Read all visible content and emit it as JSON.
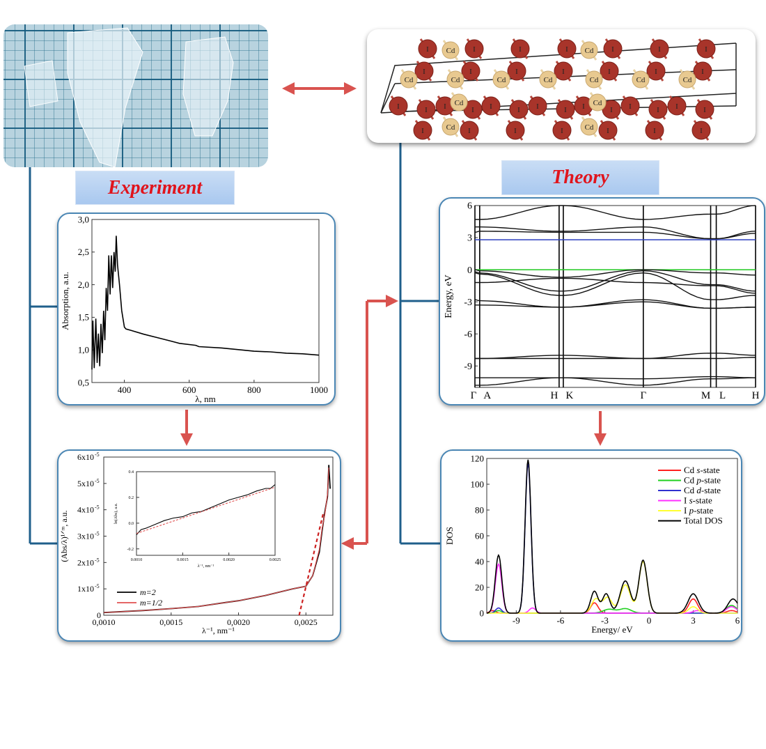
{
  "labels": {
    "experiment": "Experiment",
    "theory": "Theory"
  },
  "structure": {
    "atom_labels": {
      "cd": "Cd",
      "i": "I"
    }
  },
  "colors": {
    "connector": "#1f5f8b",
    "arrow": "#d9534f",
    "label_text": "#e0141c",
    "iodine": "#a8342a",
    "cadmium": "#e8c990",
    "panel_border": "#4a86b4"
  },
  "chart_data": [
    {
      "id": "absorption",
      "type": "line",
      "xlabel": "λ, nm",
      "ylabel": "Absorption, a.u.",
      "xlim": [
        300,
        1000
      ],
      "ylim": [
        0.5,
        3.0
      ],
      "x_ticks": [
        400,
        600,
        800,
        1000
      ],
      "x_tick_labels": [
        "400",
        "600",
        "800",
        "1000"
      ],
      "y_ticks": [
        0.5,
        1.0,
        1.5,
        2.0,
        2.5,
        3.0
      ],
      "y_tick_labels": [
        "0,5",
        "1,0",
        "1,5",
        "2,0",
        "2,5",
        "3,0"
      ],
      "series": [
        {
          "color": "#000000",
          "points": [
            [
              300,
              0.7
            ],
            [
              303,
              1.45
            ],
            [
              307,
              0.72
            ],
            [
              312,
              1.48
            ],
            [
              316,
              0.8
            ],
            [
              320,
              1.25
            ],
            [
              324,
              0.75
            ],
            [
              328,
              1.4
            ],
            [
              332,
              0.95
            ],
            [
              336,
              1.6
            ],
            [
              340,
              1.15
            ],
            [
              344,
              1.95
            ],
            [
              348,
              1.6
            ],
            [
              352,
              2.45
            ],
            [
              356,
              1.85
            ],
            [
              360,
              2.45
            ],
            [
              364,
              1.95
            ],
            [
              368,
              2.5
            ],
            [
              372,
              2.2
            ],
            [
              375,
              2.75
            ],
            [
              379,
              2.3
            ],
            [
              385,
              2.0
            ],
            [
              392,
              1.6
            ],
            [
              400,
              1.35
            ],
            [
              405,
              1.32
            ],
            [
              420,
              1.3
            ],
            [
              460,
              1.24
            ],
            [
              500,
              1.19
            ],
            [
              540,
              1.14
            ],
            [
              570,
              1.1
            ],
            [
              620,
              1.07
            ],
            [
              630,
              1.05
            ],
            [
              700,
              1.03
            ],
            [
              760,
              1.0
            ],
            [
              800,
              0.98
            ],
            [
              850,
              0.97
            ],
            [
              900,
              0.95
            ],
            [
              950,
              0.94
            ],
            [
              1000,
              0.92
            ]
          ]
        }
      ]
    },
    {
      "id": "tauc",
      "type": "line",
      "xlabel": "λ⁻¹, nm⁻¹",
      "ylabel": "(Abs/λ)¹ᐟᵐ, a.u.",
      "xlim": [
        0.001,
        0.0027
      ],
      "ylim": [
        0,
        6e-05
      ],
      "x_ticks": [
        0.001,
        0.0015,
        0.002,
        0.0025
      ],
      "x_tick_labels": [
        "0,0010",
        "0,0015",
        "0,0020",
        "0,0025"
      ],
      "y_ticks": [
        0,
        1e-05,
        2e-05,
        3e-05,
        4e-05,
        5e-05,
        6e-05
      ],
      "y_tick_labels": [
        "0",
        "1x10",
        "2x10",
        "3x10",
        "4x10",
        "5x10",
        "6x10"
      ],
      "y_tick_exponent": "-5",
      "legend": [
        "m=2",
        "m=1/2"
      ],
      "legend_placement": "bottom-left",
      "series": [
        {
          "name": "m=2",
          "color": "#000000",
          "points": [
            [
              0.001,
              1e-06
            ],
            [
              0.0013,
              1.8e-06
            ],
            [
              0.0015,
              2.5e-06
            ],
            [
              0.0017,
              3.3e-06
            ],
            [
              0.0019,
              4.8e-06
            ],
            [
              0.002,
              5.5e-06
            ],
            [
              0.0022,
              7.5e-06
            ],
            [
              0.0024,
              1e-05
            ],
            [
              0.0025,
              1.1e-05
            ],
            [
              0.00255,
              1.5e-05
            ],
            [
              0.0026,
              2.4e-05
            ],
            [
              0.00262,
              3.2e-05
            ],
            [
              0.00264,
              3.9e-05
            ],
            [
              0.00266,
              4.5e-05
            ],
            [
              0.00267,
              5.7e-05
            ],
            [
              0.00268,
              4.8e-05
            ]
          ]
        },
        {
          "name": "m=1/2",
          "color": "#e05050",
          "points": [
            [
              0.001,
              1e-06
            ],
            [
              0.0013,
              1.8e-06
            ],
            [
              0.0015,
              2.5e-06
            ],
            [
              0.0017,
              3.3e-06
            ],
            [
              0.0019,
              4.8e-06
            ],
            [
              0.002,
              5.5e-06
            ],
            [
              0.0022,
              7.5e-06
            ],
            [
              0.0024,
              1e-05
            ],
            [
              0.0025,
              1.1e-05
            ],
            [
              0.00255,
              1.5e-05
            ],
            [
              0.0026,
              2.5e-05
            ],
            [
              0.00262,
              3.3e-05
            ],
            [
              0.00264,
              3.8e-05
            ],
            [
              0.00266,
              4.6e-05
            ],
            [
              0.00267,
              5.6e-05
            ]
          ]
        }
      ],
      "fit_line": {
        "color": "#cc1f1f",
        "style": "dashed",
        "points": [
          [
            0.00245,
            0
          ],
          [
            0.00263,
            3.9e-05
          ]
        ]
      },
      "inset": {
        "xlabel": "λ⁻¹, nm⁻¹",
        "ylabel": "ln(Abs), a.u.",
        "xlim": [
          0.001,
          0.0025
        ],
        "ylim": [
          -0.25,
          0.4
        ],
        "x_ticks": [
          0.001,
          0.0015,
          0.002,
          0.0025
        ],
        "x_tick_labels": [
          "0.0010",
          "0.0015",
          "0.0020",
          "0.0025"
        ],
        "y_ticks": [
          -0.2,
          0.0,
          0.2,
          0.4
        ],
        "y_tick_labels": [
          "-0.2",
          "0.0",
          "0.2",
          "0.4"
        ],
        "series": [
          {
            "color": "#000000",
            "points": [
              [
                0.001,
                -0.09
              ],
              [
                0.00105,
                -0.05
              ],
              [
                0.0011,
                -0.04
              ],
              [
                0.0012,
                -0.01
              ],
              [
                0.0013,
                0.02
              ],
              [
                0.0014,
                0.04
              ],
              [
                0.0015,
                0.05
              ],
              [
                0.0016,
                0.08
              ],
              [
                0.0017,
                0.09
              ],
              [
                0.0018,
                0.12
              ],
              [
                0.0019,
                0.15
              ],
              [
                0.002,
                0.18
              ],
              [
                0.0021,
                0.2
              ],
              [
                0.0022,
                0.22
              ],
              [
                0.0023,
                0.25
              ],
              [
                0.0024,
                0.27
              ],
              [
                0.00245,
                0.27
              ],
              [
                0.0025,
                0.3
              ]
            ]
          },
          {
            "color": "#e05050",
            "style": "dashed",
            "points": [
              [
                0.001,
                -0.08
              ],
              [
                0.0025,
                0.28
              ]
            ]
          }
        ]
      }
    },
    {
      "id": "band-structure",
      "type": "line",
      "ylabel": "Energy, eV",
      "ylim": [
        -11,
        6
      ],
      "y_ticks": [
        6,
        3,
        0,
        -3,
        -6,
        -9
      ],
      "y_tick_labels": [
        "6",
        "3",
        "0",
        "-3",
        "-6",
        "-9"
      ],
      "k_labels": [
        "Γ",
        "A",
        "H",
        "K",
        "Γ",
        "M",
        "L",
        "H"
      ],
      "reference_lines": [
        {
          "energy": 2.8,
          "color": "#2b3fbf"
        },
        {
          "energy": 0,
          "color": "#1fc81f"
        }
      ],
      "bands": [
        [
          4.7,
          4.7,
          6.0,
          6.0,
          4.7,
          5.2,
          5.2,
          6.0
        ],
        [
          4.0,
          4.0,
          3.6,
          3.6,
          4.0,
          2.9,
          2.9,
          3.6
        ],
        [
          3.5,
          3.6,
          3.5,
          3.5,
          3.5,
          2.9,
          2.9,
          3.4
        ],
        [
          0.0,
          -0.1,
          -0.7,
          -0.7,
          0.0,
          -0.3,
          -0.3,
          -0.5
        ],
        [
          -0.2,
          -0.3,
          -2.0,
          -2.0,
          -0.1,
          -1.4,
          -1.4,
          -2.0
        ],
        [
          -0.3,
          -0.4,
          -2.4,
          -2.4,
          -0.3,
          -2.8,
          -2.8,
          -2.4
        ],
        [
          -1.2,
          -1.2,
          -0.8,
          -0.8,
          -1.2,
          -1.5,
          -1.5,
          -2.2
        ],
        [
          -2.8,
          -2.9,
          -3.5,
          -3.5,
          -2.8,
          -3.6,
          -3.6,
          -3.5
        ],
        [
          -3.3,
          -3.3,
          -3.5,
          -3.5,
          -3.0,
          -3.6,
          -3.6,
          -3.5
        ],
        [
          -8.3,
          -8.3,
          -8.0,
          -8.0,
          -8.3,
          -7.8,
          -7.8,
          -8.0
        ],
        [
          -8.3,
          -8.3,
          -8.3,
          -8.3,
          -8.3,
          -8.3,
          -8.3,
          -8.2
        ],
        [
          -10.1,
          -10.1,
          -10.1,
          -10.1,
          -10.2,
          -10.0,
          -10.0,
          -10.1
        ],
        [
          -10.8,
          -10.8,
          -10.1,
          -10.1,
          -10.8,
          -10.2,
          -10.2,
          -10.1
        ]
      ]
    },
    {
      "id": "dos",
      "type": "line",
      "xlabel": "Energy/ eV",
      "ylabel": "DOS",
      "xlim": [
        -11,
        6
      ],
      "ylim": [
        0,
        120
      ],
      "x_ticks": [
        -9,
        -6,
        -3,
        0,
        3,
        6
      ],
      "x_tick_labels": [
        "-9",
        "-6",
        "-3",
        "0",
        "3",
        "6"
      ],
      "y_ticks": [
        0,
        20,
        40,
        60,
        80,
        100,
        120
      ],
      "y_tick_labels": [
        "0",
        "20",
        "40",
        "60",
        "80",
        "100",
        "120"
      ],
      "legend_placement": "top-right",
      "series": [
        {
          "name": "Cd s-state",
          "label_parts": [
            "Cd ",
            "s",
            "-state"
          ],
          "color": "#ff2020",
          "peaks": [
            [
              -10.6,
              2,
              0.2
            ],
            [
              -3.7,
              8,
              0.25
            ],
            [
              3.0,
              11,
              0.3
            ],
            [
              5.6,
              2,
              0.3
            ]
          ]
        },
        {
          "name": "Cd p-state",
          "label_parts": [
            "Cd ",
            "p",
            "-state"
          ],
          "color": "#20d020",
          "peaks": [
            [
              -10.2,
              2,
              0.2
            ],
            [
              -2.7,
              3,
              0.4
            ],
            [
              -1.6,
              3.5,
              0.4
            ],
            [
              5.6,
              6,
              0.35
            ]
          ]
        },
        {
          "name": "Cd d-state",
          "label_parts": [
            "Cd ",
            "d",
            "-state"
          ],
          "color": "#3030d0",
          "peaks": [
            [
              -10.2,
              4,
              0.2
            ],
            [
              -8.2,
              116,
              0.2
            ]
          ]
        },
        {
          "name": "I s-state",
          "label_parts": [
            "I ",
            "s",
            "-state"
          ],
          "color": "#ff30ff",
          "peaks": [
            [
              -10.2,
              38,
              0.22
            ],
            [
              -7.9,
              4,
              0.22
            ],
            [
              3.3,
              2,
              0.3
            ],
            [
              5.6,
              5,
              0.35
            ]
          ]
        },
        {
          "name": "I p-state",
          "label_parts": [
            "I ",
            "p",
            "-state"
          ],
          "color": "#ffff30",
          "peaks": [
            [
              -3.6,
              11,
              0.3
            ],
            [
              -2.8,
              12,
              0.3
            ],
            [
              -1.6,
              22,
              0.35
            ],
            [
              -0.4,
              40,
              0.28
            ],
            [
              3.0,
              5,
              0.3
            ]
          ]
        },
        {
          "name": "Total DOS",
          "label_parts": [
            "Total DOS",
            "",
            ""
          ],
          "color": "#000000",
          "peaks": [
            [
              -10.2,
              45,
              0.22
            ],
            [
              -8.2,
              119,
              0.2
            ],
            [
              -3.7,
              17,
              0.25
            ],
            [
              -2.9,
              15,
              0.25
            ],
            [
              -1.6,
              25,
              0.35
            ],
            [
              -0.4,
              41,
              0.28
            ],
            [
              3.0,
              15,
              0.35
            ],
            [
              5.7,
              11,
              0.35
            ]
          ]
        }
      ]
    }
  ]
}
